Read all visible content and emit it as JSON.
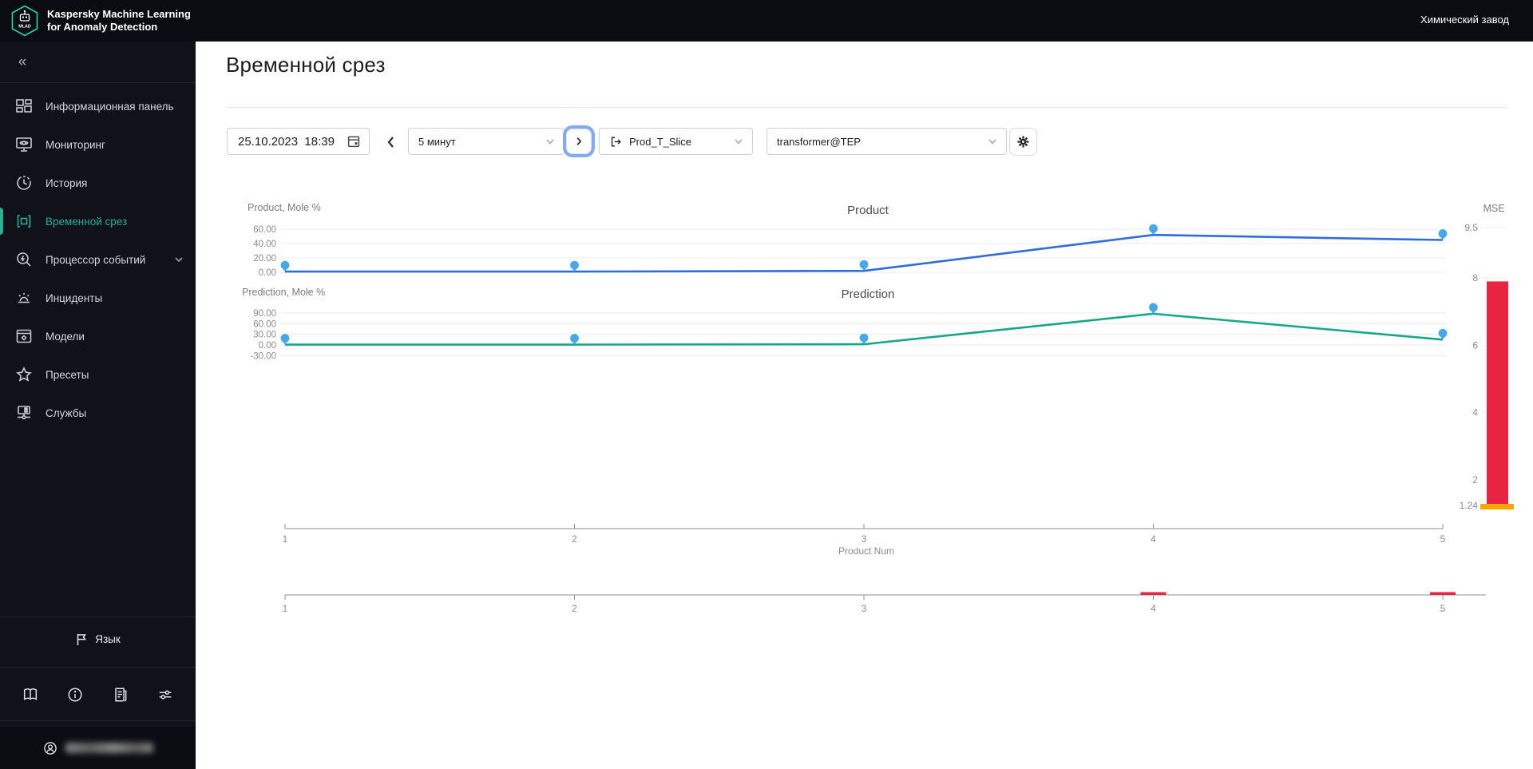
{
  "topbar": {
    "logo_text": "MLAD",
    "app_title_line1": "Kaspersky Machine Learning",
    "app_title_line2": "for Anomaly Detection",
    "org_name": "Химический завод"
  },
  "sidebar": {
    "collapse_glyph": "«",
    "items": [
      {
        "label": "Информационная панель",
        "icon": "dashboard-icon",
        "active": false
      },
      {
        "label": "Мониторинг",
        "icon": "monitoring-icon",
        "active": false
      },
      {
        "label": "История",
        "icon": "history-icon",
        "active": false
      },
      {
        "label": "Временной срез",
        "icon": "time-slice-icon",
        "active": true
      },
      {
        "label": "Процессор событий",
        "icon": "event-processor-icon",
        "active": false,
        "expandable": true
      },
      {
        "label": "Инциденты",
        "icon": "incidents-icon",
        "active": false
      },
      {
        "label": "Модели",
        "icon": "models-icon",
        "active": false
      },
      {
        "label": "Пресеты",
        "icon": "presets-icon",
        "active": false
      },
      {
        "label": "Службы",
        "icon": "services-icon",
        "active": false
      }
    ],
    "language_label": "Язык",
    "footer_icons": [
      "documentation-icon",
      "info-icon",
      "news-icon",
      "settings-sliders-icon"
    ],
    "account": {
      "email_blurred": true
    }
  },
  "page": {
    "title": "Временной срез"
  },
  "toolbar": {
    "datetime": "25.10.2023  18:39",
    "interval": "5 минут",
    "slice": "Prod_T_Slice",
    "model": "transformer@TEP"
  },
  "chart_data": [
    {
      "type": "line",
      "title": "Product",
      "ylabel": "Product, Mole %",
      "xlabel": "Product Num",
      "x": [
        1,
        2,
        3,
        4,
        5
      ],
      "values": [
        1,
        1,
        2,
        52,
        45
      ],
      "yticks": [
        60,
        40,
        20,
        0
      ],
      "xticks": [
        1,
        2,
        3,
        4,
        5
      ],
      "line_color": "#2e6ddb",
      "marker_color": "#47a7e8",
      "grid": true
    },
    {
      "type": "line",
      "title": "Prediction",
      "ylabel": "Prediction, Mole %",
      "x": [
        1,
        2,
        3,
        4,
        5
      ],
      "values": [
        1,
        1,
        2,
        88,
        15
      ],
      "yticks": [
        90,
        60,
        30,
        0,
        -30
      ],
      "line_color": "#16a689",
      "marker_color": "#47a7e8",
      "grid": true
    },
    {
      "type": "bar",
      "title": "MSE",
      "values": [
        7.9
      ],
      "yticks": [
        9.5,
        8,
        6,
        4,
        2,
        1.24
      ],
      "ylim": [
        1.24,
        9.5
      ],
      "bar_color": "#e92440",
      "threshold_value": 1.24,
      "threshold_color": "#f6a800"
    },
    {
      "type": "navigator-axis",
      "xticks": [
        1,
        2,
        3,
        4,
        5
      ],
      "anomaly_marks": [
        4,
        5
      ],
      "mark_color": "#e92440"
    }
  ]
}
